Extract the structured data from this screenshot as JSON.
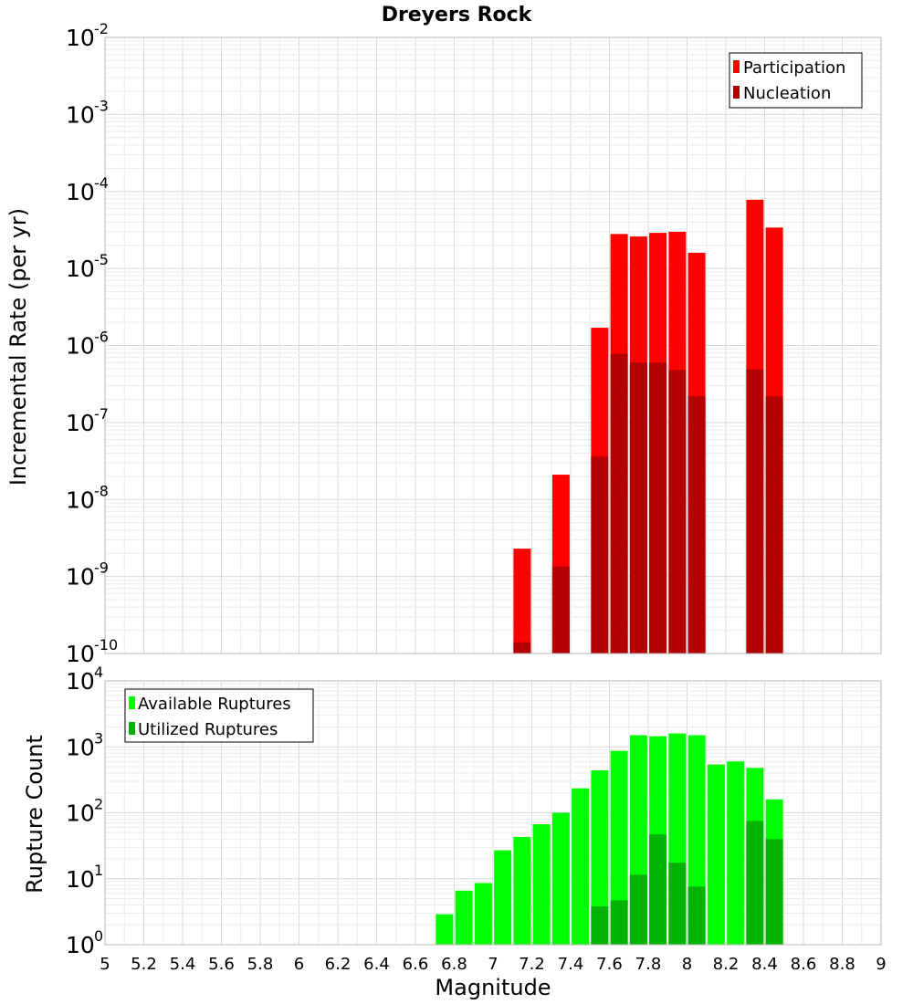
{
  "chart_data": [
    {
      "type": "bar",
      "title": "Dreyers Rock",
      "ylabel": "Incremental Rate (per yr)",
      "xlabel": "",
      "yscale": "log",
      "ylim_exp": [
        -10,
        -2
      ],
      "xlim": [
        5,
        9
      ],
      "legend_position": "top-right",
      "series": [
        {
          "name": "Participation",
          "color": "#ff0000",
          "points": [
            [
              7.15,
              2.3e-09
            ],
            [
              7.35,
              2.1e-08
            ],
            [
              7.55,
              1.7e-06
            ],
            [
              7.65,
              2.8e-05
            ],
            [
              7.75,
              2.6e-05
            ],
            [
              7.85,
              2.9e-05
            ],
            [
              7.95,
              3e-05
            ],
            [
              8.05,
              1.6e-05
            ],
            [
              8.35,
              7.8e-05
            ],
            [
              8.45,
              3.4e-05
            ]
          ]
        },
        {
          "name": "Nucleation",
          "color": "#b30000",
          "points": [
            [
              7.15,
              1.4e-10
            ],
            [
              7.35,
              1.35e-09
            ],
            [
              7.55,
              3.6e-08
            ],
            [
              7.65,
              7.8e-07
            ],
            [
              7.75,
              6e-07
            ],
            [
              7.85,
              6e-07
            ],
            [
              7.95,
              4.8e-07
            ],
            [
              8.05,
              2.2e-07
            ],
            [
              8.35,
              4.9e-07
            ],
            [
              8.45,
              2.2e-07
            ]
          ]
        }
      ]
    },
    {
      "type": "bar",
      "title": "",
      "ylabel": "Rupture Count",
      "xlabel": "Magnitude",
      "yscale": "log",
      "ylim_exp": [
        0,
        4
      ],
      "xlim": [
        5,
        9
      ],
      "legend_position": "top-left",
      "series": [
        {
          "name": "Available Ruptures",
          "color": "#00ff00",
          "points": [
            [
              6.25,
              1
            ],
            [
              6.55,
              1
            ],
            [
              6.75,
              2.9
            ],
            [
              6.85,
              6.6
            ],
            [
              6.95,
              8.6
            ],
            [
              7.05,
              27
            ],
            [
              7.15,
              43
            ],
            [
              7.25,
              67
            ],
            [
              7.35,
              100
            ],
            [
              7.45,
              235
            ],
            [
              7.55,
              440
            ],
            [
              7.65,
              870
            ],
            [
              7.75,
              1500
            ],
            [
              7.85,
              1450
            ],
            [
              7.95,
              1600
            ],
            [
              8.05,
              1500
            ],
            [
              8.15,
              540
            ],
            [
              8.25,
              600
            ],
            [
              8.35,
              480
            ],
            [
              8.45,
              160
            ]
          ]
        },
        {
          "name": "Utilized Ruptures",
          "color": "#00b300",
          "points": [
            [
              7.15,
              1
            ],
            [
              7.25,
              1
            ],
            [
              7.35,
              1
            ],
            [
              7.45,
              1
            ],
            [
              7.55,
              3.8
            ],
            [
              7.65,
              4.7
            ],
            [
              7.75,
              11.5
            ],
            [
              7.85,
              47
            ],
            [
              7.95,
              17.5
            ],
            [
              8.05,
              7.6
            ],
            [
              8.35,
              75
            ],
            [
              8.45,
              40
            ]
          ]
        }
      ]
    }
  ],
  "x_ticks": [
    "5",
    "5.2",
    "5.4",
    "5.6",
    "5.8",
    "6",
    "6.2",
    "6.4",
    "6.6",
    "6.8",
    "7",
    "7.2",
    "7.4",
    "7.6",
    "7.8",
    "8",
    "8.2",
    "8.4",
    "8.6",
    "8.8",
    "9"
  ],
  "top_y_ticks": [
    {
      "base": "10",
      "exp": "-10",
      "e": -10
    },
    {
      "base": "10",
      "exp": "-9",
      "e": -9
    },
    {
      "base": "10",
      "exp": "-8",
      "e": -8
    },
    {
      "base": "10",
      "exp": "-7",
      "e": -7
    },
    {
      "base": "10",
      "exp": "-6",
      "e": -6
    },
    {
      "base": "10",
      "exp": "-5",
      "e": -5
    },
    {
      "base": "10",
      "exp": "-4",
      "e": -4
    },
    {
      "base": "10",
      "exp": "-3",
      "e": -3
    },
    {
      "base": "10",
      "exp": "-2",
      "e": -2
    }
  ],
  "bottom_y_ticks": [
    {
      "base": "10",
      "exp": "0",
      "e": 0
    },
    {
      "base": "10",
      "exp": "1",
      "e": 1
    },
    {
      "base": "10",
      "exp": "2",
      "e": 2
    },
    {
      "base": "10",
      "exp": "3",
      "e": 3
    },
    {
      "base": "10",
      "exp": "4",
      "e": 4
    }
  ]
}
